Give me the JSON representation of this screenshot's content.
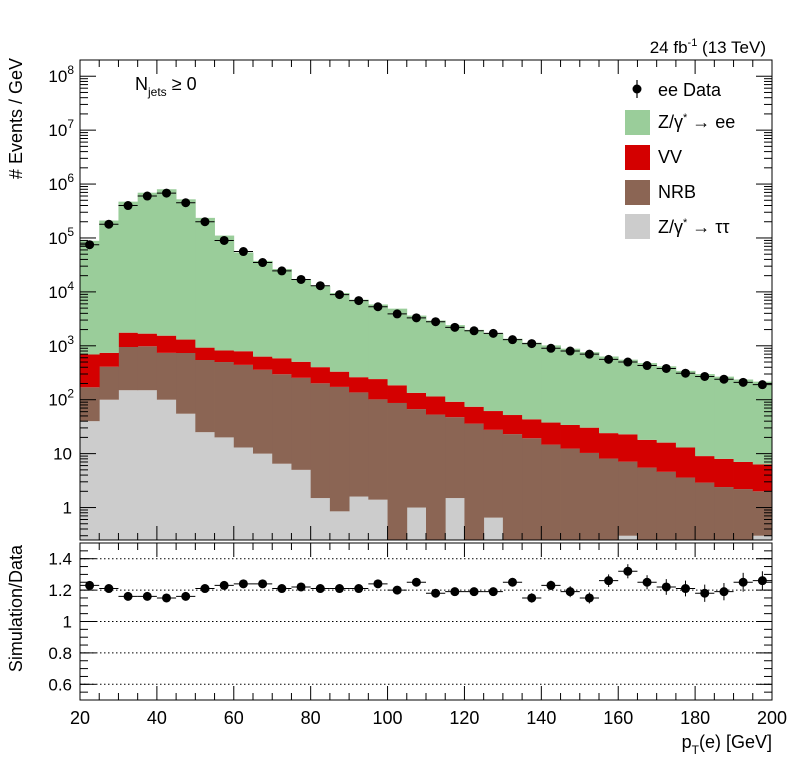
{
  "lumi_label": "24 fb",
  "lumi_sup": "-1",
  "lumi_energy": "(13 TeV)",
  "selection_main": "N",
  "selection_sub": "jets",
  "selection_cond": " ≥ 0",
  "ylabel_top": "# Events / GeV",
  "ylabel_bottom": "Simulation/Data",
  "xlabel_main": "p",
  "xlabel_sub": "T",
  "xlabel_rest": "(e) [GeV]",
  "legend": {
    "data": "ee Data",
    "zee_a": "Z/γ",
    "zee_sup": "*",
    "zee_b": " → ee",
    "vv": "VV",
    "nrb": "NRB",
    "ztt_a": "Z/γ",
    "ztt_sup": "*",
    "ztt_b": " → ττ"
  },
  "colors": {
    "zee": "#9acd9a",
    "vv": "#d40000",
    "nrb": "#8b6554",
    "ztt": "#cccccc",
    "data": "#000000"
  },
  "chart_data": [
    {
      "type": "bar",
      "stacked": true,
      "log_y": true,
      "xlim": [
        20,
        200
      ],
      "ylim": [
        0.25,
        200000000
      ],
      "bin_width": 5,
      "x": [
        22.5,
        27.5,
        32.5,
        37.5,
        42.5,
        47.5,
        52.5,
        57.5,
        62.5,
        67.5,
        72.5,
        77.5,
        82.5,
        87.5,
        92.5,
        97.5,
        102.5,
        107.5,
        112.5,
        117.5,
        122.5,
        127.5,
        132.5,
        137.5,
        142.5,
        147.5,
        152.5,
        157.5,
        162.5,
        167.5,
        172.5,
        177.5,
        182.5,
        187.5,
        192.5,
        197.5
      ],
      "xticks": [
        20,
        40,
        60,
        80,
        100,
        120,
        140,
        160,
        180,
        200
      ],
      "yticks": [
        "1",
        "10",
        "10^2",
        "10^3",
        "10^4",
        "10^5",
        "10^6",
        "10^7",
        "10^8"
      ],
      "ylabel": "# Events / GeV",
      "series": [
        {
          "name": "Z/γ* → ττ",
          "values": [
            40,
            100,
            150,
            150,
            100,
            55,
            25,
            20,
            13,
            10,
            6.5,
            5,
            1.5,
            0.85,
            1.6,
            1.4,
            0,
            1,
            0,
            1.5,
            0,
            0.65,
            0,
            0,
            0,
            0,
            0,
            0,
            0.3,
            0,
            0,
            0,
            0,
            0,
            0,
            0.3
          ]
        },
        {
          "name": "NRB",
          "values": [
            130,
            310,
            800,
            830,
            640,
            680,
            520,
            480,
            430,
            350,
            290,
            250,
            200,
            172,
            135,
            100,
            87,
            66,
            53,
            46,
            36,
            27,
            23,
            19.3,
            14.7,
            12.4,
            10.3,
            8.1,
            6.8,
            5.5,
            4.6,
            3.6,
            2.9,
            2.4,
            2.2,
            1.7
          ]
        },
        {
          "name": "VV",
          "values": [
            520,
            330,
            800,
            700,
            800,
            570,
            380,
            320,
            350,
            270,
            290,
            250,
            200,
            158,
            125,
            140,
            98,
            67,
            62,
            44,
            38,
            34,
            29,
            24,
            23,
            21.6,
            20,
            15.9,
            15.7,
            12.5,
            11.4,
            9.4,
            6.1,
            5.6,
            4.8,
            4.3
          ]
        },
        {
          "name": "Z/γ* → ee",
          "values": [
            88000,
            210000,
            470000,
            690000,
            800000,
            520000,
            235000,
            110000,
            53000,
            37000,
            26000,
            16600,
            12500,
            9200,
            6900,
            5600,
            4700,
            3500,
            2830,
            2330,
            1900,
            1650,
            1300,
            1100,
            980,
            850,
            730,
            610,
            530,
            460,
            400,
            330,
            290,
            260,
            230,
            210
          ]
        }
      ],
      "data_series": {
        "name": "ee Data",
        "values": [
          75000,
          180000,
          400000,
          600000,
          680000,
          450000,
          200000,
          90000,
          56000,
          35000,
          24500,
          17000,
          13000,
          8900,
          6900,
          5300,
          3900,
          3300,
          2800,
          2200,
          1900,
          1700,
          1300,
          1100,
          900,
          800,
          700,
          560,
          500,
          430,
          380,
          310,
          270,
          240,
          210,
          190
        ]
      }
    },
    {
      "type": "scatter",
      "xlim": [
        20,
        200
      ],
      "ylim": [
        0.5,
        1.5
      ],
      "yticks": [
        0.6,
        0.8,
        1.0,
        1.2,
        1.4
      ],
      "ylabel": "Simulation/Data",
      "xlabel": "p_T(e) [GeV]",
      "x": [
        22.5,
        27.5,
        32.5,
        37.5,
        42.5,
        47.5,
        52.5,
        57.5,
        62.5,
        67.5,
        72.5,
        77.5,
        82.5,
        87.5,
        92.5,
        97.5,
        102.5,
        107.5,
        112.5,
        117.5,
        122.5,
        127.5,
        132.5,
        137.5,
        142.5,
        147.5,
        152.5,
        157.5,
        162.5,
        167.5,
        172.5,
        177.5,
        182.5,
        187.5,
        192.5,
        197.5
      ],
      "values": [
        1.23,
        1.21,
        1.16,
        1.16,
        1.15,
        1.16,
        1.21,
        1.23,
        1.24,
        1.24,
        1.21,
        1.22,
        1.21,
        1.21,
        1.21,
        1.24,
        1.2,
        1.25,
        1.18,
        1.19,
        1.19,
        1.19,
        1.25,
        1.15,
        1.23,
        1.19,
        1.15,
        1.26,
        1.32,
        1.25,
        1.22,
        1.21,
        1.18,
        1.19,
        1.25,
        1.26
      ],
      "errors": [
        0.012,
        0.012,
        0.012,
        0.012,
        0.012,
        0.012,
        0.012,
        0.012,
        0.012,
        0.012,
        0.012,
        0.012,
        0.012,
        0.012,
        0.012,
        0.012,
        0.012,
        0.015,
        0.018,
        0.02,
        0.02,
        0.02,
        0.025,
        0.03,
        0.03,
        0.035,
        0.035,
        0.04,
        0.045,
        0.045,
        0.05,
        0.05,
        0.055,
        0.055,
        0.06,
        0.06
      ],
      "gridlines": [
        0.6,
        0.8,
        1.0,
        1.2,
        1.4
      ]
    }
  ]
}
